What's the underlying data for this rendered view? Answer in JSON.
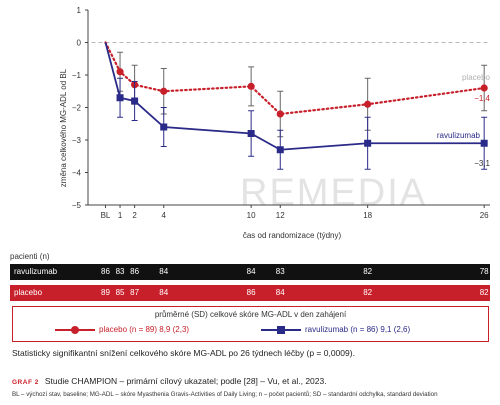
{
  "chart_data": {
    "type": "line",
    "x_positions": [
      "BL",
      1,
      2,
      4,
      10,
      12,
      18,
      26
    ],
    "x_ticks": [
      "BL",
      "1",
      "2",
      "4",
      "10",
      "12",
      "18",
      "26"
    ],
    "xlabel": "čas od randomizace (týdny)",
    "ylabel": "změna celkového MG-ADL od BL",
    "ylim": [
      -5,
      1
    ],
    "y_ticks": [
      1,
      0,
      -1,
      -2,
      -3,
      -4,
      -5
    ],
    "xlim": [
      -1.2,
      26.4
    ],
    "reference_line": 0,
    "series": [
      {
        "name": "placebo",
        "end_value": "−1,4",
        "color": "#c8202b",
        "marker": "circle",
        "style": "dotted",
        "x": [
          1,
          2,
          4,
          10,
          12,
          18,
          26
        ],
        "y": [
          -0.9,
          -1.3,
          -1.5,
          -1.35,
          -2.2,
          -1.9,
          -1.4
        ],
        "err": [
          0.6,
          0.6,
          0.7,
          0.6,
          0.7,
          0.8,
          0.7
        ]
      },
      {
        "name": "ravulizumab",
        "end_value": "−3,1",
        "color": "#2a2a88",
        "marker": "square",
        "style": "solid",
        "x": [
          1,
          2,
          4,
          10,
          12,
          18,
          26
        ],
        "y": [
          -1.7,
          -1.8,
          -2.6,
          -2.8,
          -3.3,
          -3.1,
          -3.1
        ],
        "err": [
          0.6,
          0.6,
          0.6,
          0.7,
          0.6,
          0.8,
          0.8
        ]
      }
    ],
    "watermark": "REMEDIA"
  },
  "patients": {
    "caption": "pacienti (n)",
    "ravulizumab": {
      "label": "ravulizumab",
      "counts": [
        "86",
        "83",
        "86",
        "84",
        "84",
        "83",
        "82",
        "78"
      ]
    },
    "placebo": {
      "label": "placebo",
      "counts": [
        "89",
        "85",
        "87",
        "84",
        "86",
        "84",
        "82",
        "82"
      ]
    }
  },
  "legend": {
    "title": "průměrné (SD) celkové skóre MG-ADL v den zahájení",
    "placebo": "placebo (n = 89) 8,9 (2,3)",
    "ravulizumab": "ravulizumab (n = 86) 9,1 (2,6)"
  },
  "note": "Statisticky signifikantní snížení celkového skóre MG-ADL po 26 týdnech léčby (p = 0,0009).",
  "figure": {
    "label": "GRAF 2",
    "caption": "Studie CHAMPION – primární cílový ukazatel; podle [28] – Vu, et al., 2023."
  },
  "footnote": "BL – výchozí stav, baseline; MG-ADL – skóre Myasthenia Gravis-Activities of Daily Living; n – počet pacientů; SD – standardní odchylka, standard deviation"
}
